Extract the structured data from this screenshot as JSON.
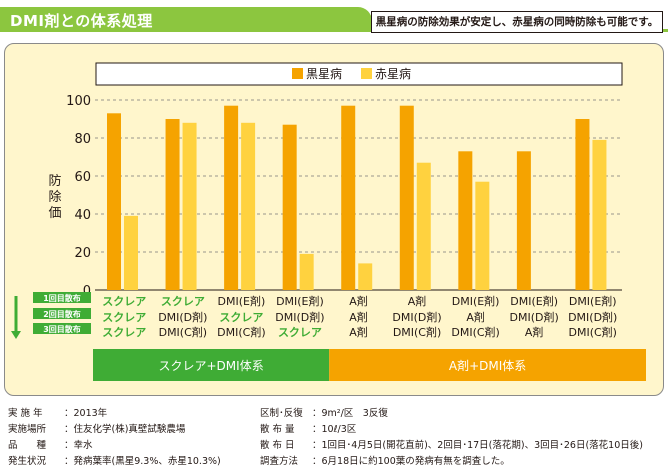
{
  "header": {
    "title": "DMI剤との体系処理",
    "summary": "黒星病の防除効果が安定し、赤星病の同時防除も可能です。"
  },
  "colors": {
    "black_spot": "#f5a300",
    "red_spot": "#ffd23f",
    "green_band": "#3fac35",
    "orange_band": "#f5a300",
    "label_green": "#3fac35"
  },
  "chart_data": {
    "type": "bar",
    "ylabel": "防除価",
    "ylim": [
      0,
      100
    ],
    "yticks": [
      0,
      20,
      40,
      60,
      80,
      100
    ],
    "legend": [
      "黒星病",
      "赤星病"
    ],
    "legend_position": "top",
    "grid": true,
    "series": [
      {
        "name": "黒星病",
        "values": [
          93,
          90,
          97,
          87,
          97,
          97,
          73,
          73,
          90
        ]
      },
      {
        "name": "赤星病",
        "values": [
          39,
          88,
          88,
          19,
          14,
          67,
          57,
          null,
          79
        ]
      }
    ],
    "spray_labels": [
      "1回目散布",
      "2回目散布",
      "3回目散布"
    ],
    "treatments": [
      [
        "スクレア",
        "スクレア",
        "スクレア"
      ],
      [
        "スクレア",
        "DMI(D剤)",
        "DMI(C剤)"
      ],
      [
        "DMI(E剤)",
        "スクレア",
        "DMI(C剤)"
      ],
      [
        "DMI(E剤)",
        "DMI(D剤)",
        "スクレア"
      ],
      [
        "A剤",
        "A剤",
        "A剤"
      ],
      [
        "A剤",
        "DMI(D剤)",
        "DMI(C剤)"
      ],
      [
        "DMI(E剤)",
        "A剤",
        "DMI(C剤)"
      ],
      [
        "DMI(E剤)",
        "DMI(D剤)",
        "A剤"
      ],
      [
        "DMI(E剤)",
        "DMI(D剤)",
        "DMI(C剤)"
      ]
    ],
    "groups": [
      {
        "label": "スクレア+DMI体系",
        "columns": 4
      },
      {
        "label": "A剤+DMI体系",
        "columns": 5
      }
    ]
  },
  "footer": {
    "left": [
      {
        "key": "実 施 年",
        "value": "：2013年"
      },
      {
        "key": "実施場所",
        "value": "：住友化学(株)真壁試験農場"
      },
      {
        "key": "品　　種",
        "value": "：幸水"
      },
      {
        "key": "発生状況",
        "value": "：発病葉率(黒星9.3%、赤星10.3%)"
      }
    ],
    "right": [
      {
        "key": "区制･反復",
        "value": "：9m²/区　3反復"
      },
      {
        "key": "散 布 量",
        "value": "：10ℓ/3区"
      },
      {
        "key": "散 布 日",
        "value": "：1回目･4月5日(開花直前)、2回目･17日(落花期)、3回目･26日(落花10日後)"
      },
      {
        "key": "調査方法",
        "value": "：6月18日に約100葉の発病有無を調査した。"
      }
    ]
  }
}
